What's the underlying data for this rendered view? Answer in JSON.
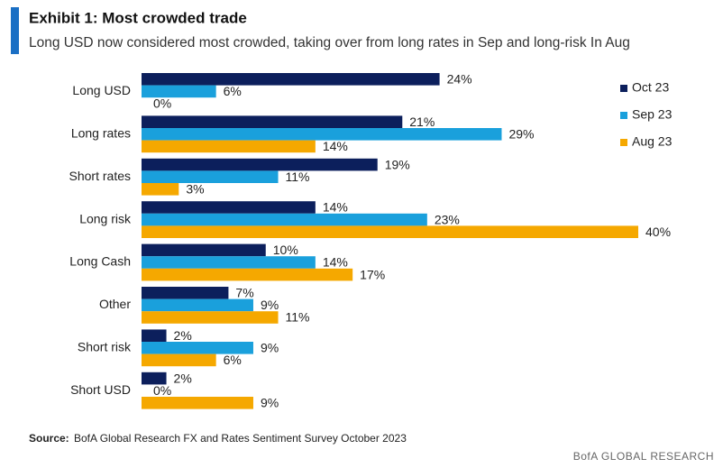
{
  "chart_data": {
    "type": "bar",
    "orientation": "horizontal",
    "title": "Exhibit 1: Most crowded trade",
    "subtitle": "Long USD now considered most crowded, taking over from long rates in Sep and long-risk In Aug",
    "categories": [
      "Long USD",
      "Long rates",
      "Short rates",
      "Long risk",
      "Long Cash",
      "Other",
      "Short risk",
      "Short USD"
    ],
    "series": [
      {
        "name": "Oct 23",
        "color": "#0c1f5c",
        "values": [
          24,
          21,
          19,
          14,
          10,
          7,
          2,
          2
        ],
        "value_labels": [
          "24%",
          "21%",
          "19%",
          "14%",
          "10%",
          "7%",
          "2%",
          "2%"
        ]
      },
      {
        "name": "Sep 23",
        "color": "#1aa0dc",
        "values": [
          6,
          29,
          11,
          23,
          14,
          9,
          9,
          0
        ],
        "value_labels": [
          "6%",
          "29%",
          "11%",
          "23%",
          "14%",
          "9%",
          "9%",
          "0%"
        ]
      },
      {
        "name": "Aug 23",
        "color": "#f5a800",
        "values": [
          0,
          14,
          3,
          40,
          17,
          11,
          6,
          9
        ],
        "value_labels": [
          "0%",
          "14%",
          "3%",
          "40%",
          "17%",
          "11%",
          "6%",
          "9%"
        ]
      }
    ],
    "legend": "top-right",
    "source_label": "Source:",
    "source": "BofA Global Research FX and Rates Sentiment Survey October 2023",
    "footer": "BofA GLOBAL RESEARCH"
  }
}
